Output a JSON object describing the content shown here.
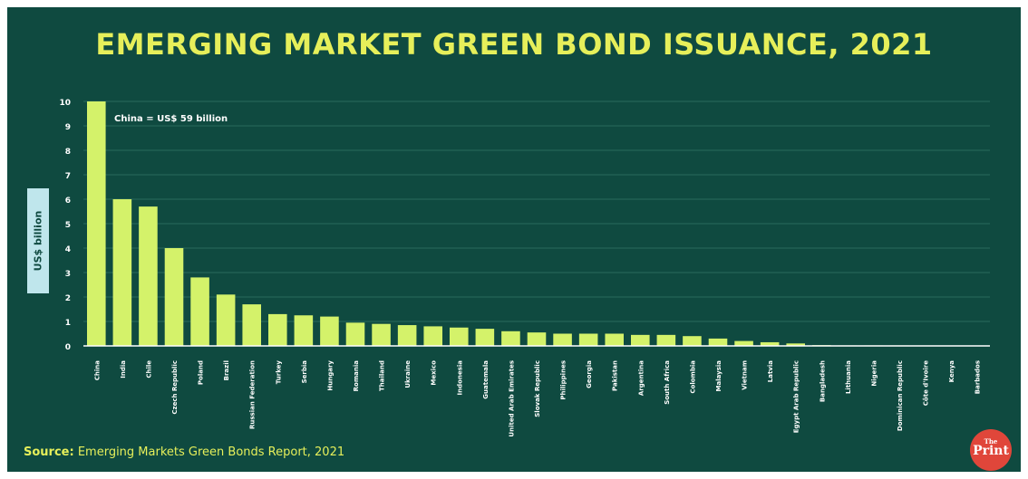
{
  "colors": {
    "background": "#0f4a40",
    "accent": "#e6ef5a",
    "bar": "#d4f26a",
    "ylabel_box": "#bfe6ec",
    "logo": "#e0463a"
  },
  "chart_data": {
    "type": "bar",
    "title": "EMERGING MARKET GREEN BOND ISSUANCE, 2021",
    "ylabel": "US$ billion",
    "xlabel": "",
    "ylim": [
      0,
      10
    ],
    "yticks": [
      0,
      1,
      2,
      3,
      4,
      5,
      6,
      7,
      8,
      9,
      10
    ],
    "grid": true,
    "categories": [
      "China",
      "India",
      "Chile",
      "Czech Republic",
      "Poland",
      "Brazil",
      "Russian Federation",
      "Turkey",
      "Serbia",
      "Hungary",
      "Romania",
      "Thailand",
      "Ukraine",
      "Mexico",
      "Indonesia",
      "Guatemala",
      "United Arab Emirates",
      "Slovak Republic",
      "Philippines",
      "Georgia",
      "Pakistan",
      "Argentina",
      "South Africa",
      "Colombia",
      "Malaysia",
      "Vietnam",
      "Latvia",
      "Egypt Arab Republic",
      "Bangladesh",
      "Lithuania",
      "Nigeria",
      "Dominican Republic",
      "Côte d'Ivoire",
      "Kenya",
      "Barbados"
    ],
    "values": [
      10,
      6.0,
      5.7,
      4.0,
      2.8,
      2.1,
      1.7,
      1.3,
      1.25,
      1.2,
      0.95,
      0.9,
      0.85,
      0.8,
      0.75,
      0.7,
      0.6,
      0.55,
      0.5,
      0.5,
      0.5,
      0.45,
      0.45,
      0.4,
      0.3,
      0.2,
      0.15,
      0.1,
      0.03,
      0.02,
      0.02,
      0.02,
      0.01,
      0.01,
      0.01
    ],
    "annotations": [
      "China = US$ 59 billion"
    ]
  },
  "source": {
    "label": "Source:",
    "text": "Emerging Markets Green Bonds Report, 2021"
  },
  "logo": {
    "line1": "The",
    "line2": "Print"
  }
}
